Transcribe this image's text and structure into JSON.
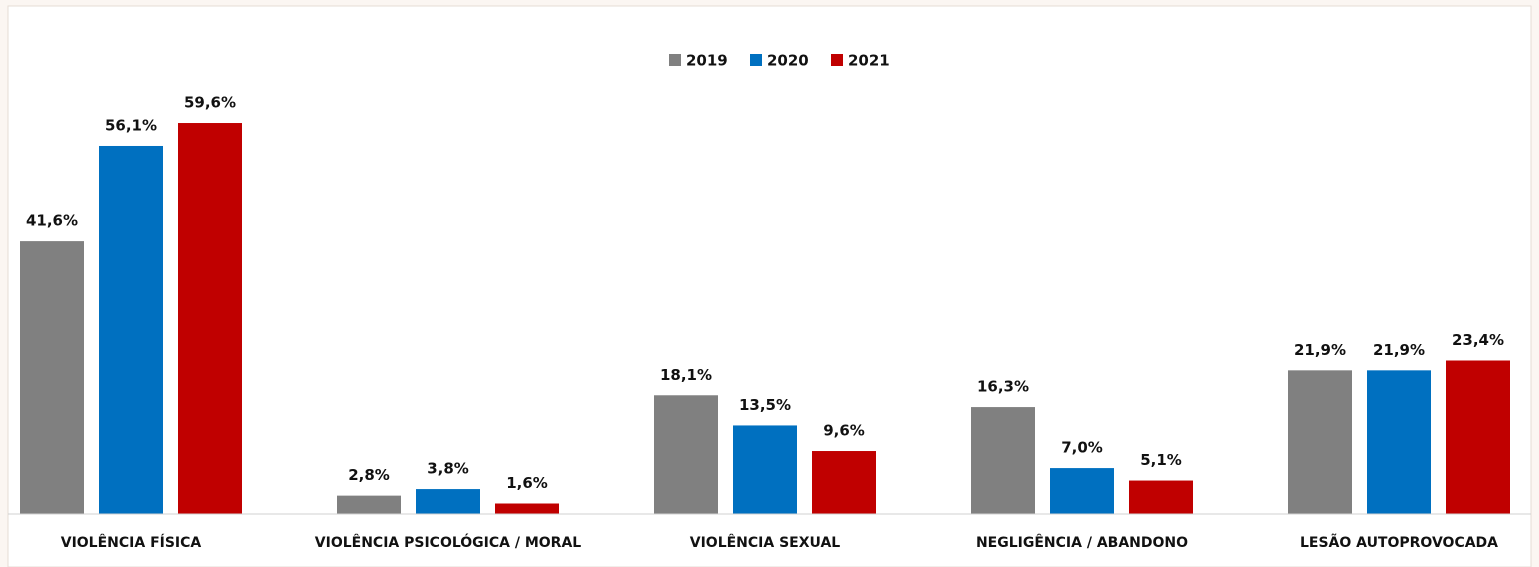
{
  "chart_data": {
    "type": "bar",
    "categories": [
      "VIOLÊNCIA FÍSICA",
      "VIOLÊNCIA PSICOLÓGICA / MORAL",
      "VIOLÊNCIA SEXUAL",
      "NEGLIGÊNCIA / ABANDONO",
      "LESÃO AUTOPROVOCADA"
    ],
    "series": [
      {
        "name": "2019",
        "color": "#808080",
        "values": [
          41.6,
          2.8,
          18.1,
          16.3,
          21.9
        ],
        "value_labels": [
          "41,6%",
          "2,8%",
          "18,1%",
          "16,3%",
          "21,9%"
        ]
      },
      {
        "name": "2020",
        "color": "#0070c0",
        "values": [
          56.1,
          3.8,
          13.5,
          7.0,
          21.9
        ],
        "value_labels": [
          "56,1%",
          "3,8%",
          "13,5%",
          "7,0%",
          "21,9%"
        ]
      },
      {
        "name": "2021",
        "color": "#c00000",
        "values": [
          59.6,
          1.6,
          9.6,
          5.1,
          23.4
        ],
        "value_labels": [
          "59,6%",
          "1,6%",
          "9,6%",
          "5,1%",
          "23,4%"
        ]
      }
    ],
    "legend": "top"
  }
}
